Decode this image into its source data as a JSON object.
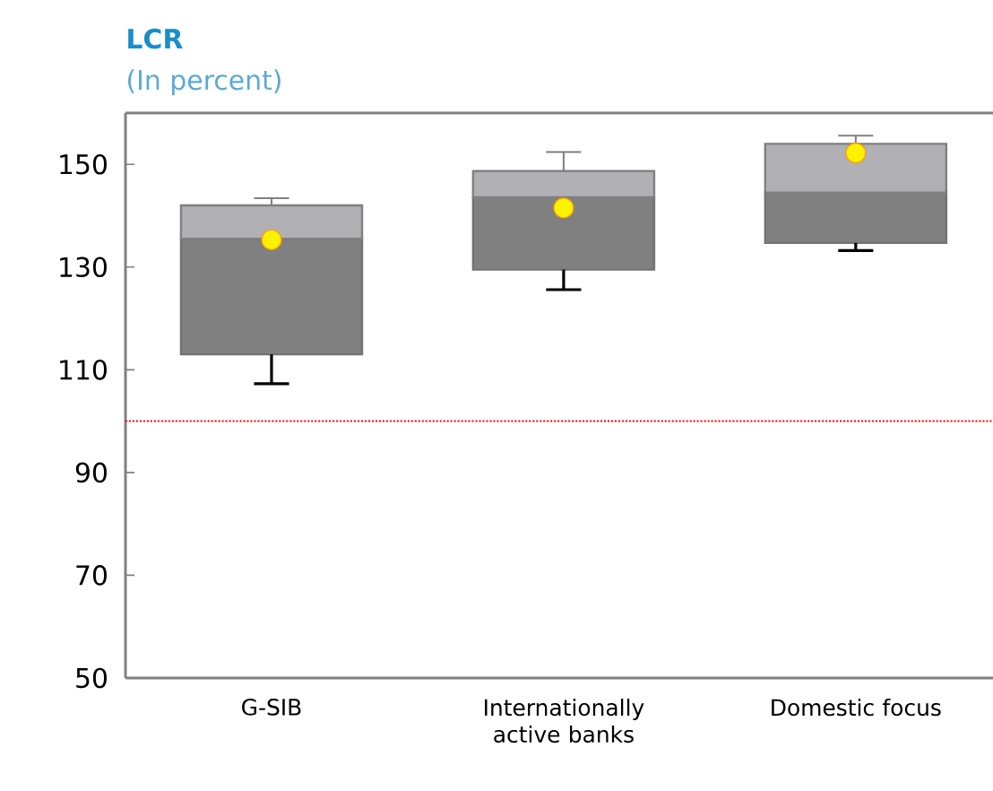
{
  "chart_data": {
    "type": "box",
    "title": "LCR",
    "subtitle": "(In percent)",
    "categories": [
      "G-SIB",
      "Internationally active banks",
      "Domestic focus"
    ],
    "ylim": [
      50,
      160
    ],
    "yticks": [
      50,
      70,
      90,
      110,
      130,
      150
    ],
    "series": [
      {
        "color": "#808080",
        "boxes": [
          {
            "low": 107.3,
            "q1": 113,
            "median": 135.5,
            "q3": 142,
            "high": 143.4,
            "mean": 135.3
          },
          {
            "low": 125.6,
            "q1": 129.5,
            "median": 143.6,
            "q3": 148.7,
            "high": 152.4,
            "mean": 141.5
          },
          {
            "low": 133.2,
            "q1": 134.7,
            "median": 144.5,
            "q3": 154,
            "high": 155.6,
            "mean": 152.2
          }
        ]
      }
    ],
    "ref_lines": [
      {
        "axis": "y",
        "value": 100,
        "color": "#ff0000",
        "line_style": "dotted"
      }
    ]
  }
}
